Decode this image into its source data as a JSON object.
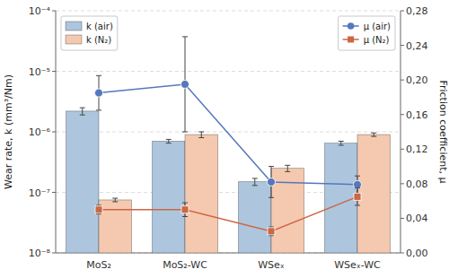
{
  "chart_data": {
    "type": "bar",
    "categories": [
      "MoS₂",
      "MoS₂-WC",
      "WSeₓ",
      "WSeₓ-WC"
    ],
    "ylabel": "Wear rate, k (mm³/Nm)",
    "y2label": "Friction coefficient, μ",
    "log": "y",
    "ylim": [
      1e-08,
      0.0001
    ],
    "yticks": [
      {
        "value": 1e-08,
        "label": "10⁻⁸"
      },
      {
        "value": 1e-07,
        "label": "10⁻⁷"
      },
      {
        "value": 1e-06,
        "label": "10⁻⁶"
      },
      {
        "value": 1e-05,
        "label": "10⁻⁵"
      },
      {
        "value": 0.0001,
        "label": "10⁻⁴"
      }
    ],
    "y2lim": [
      0.0,
      0.28
    ],
    "y2ticks": [
      {
        "value": 0.0,
        "label": "0,00"
      },
      {
        "value": 0.04,
        "label": "0,04"
      },
      {
        "value": 0.08,
        "label": "0,08"
      },
      {
        "value": 0.12,
        "label": "0,12"
      },
      {
        "value": 0.16,
        "label": "0,16"
      },
      {
        "value": 0.2,
        "label": "0,20"
      },
      {
        "value": 0.24,
        "label": "0,24"
      },
      {
        "value": 0.28,
        "label": "0,28"
      }
    ],
    "grid": true,
    "legend": "upper left",
    "series": [
      {
        "name": "k (air)",
        "type": "bar",
        "color": "#adc6de",
        "values": [
          2.2e-06,
          7e-07,
          1.5e-07,
          6.5e-07
        ],
        "errors": [
          3e-07,
          5e-08,
          2e-08,
          5e-08
        ]
      },
      {
        "name": "k (N₂)",
        "type": "bar",
        "color": "#f5c9af",
        "values": [
          7.5e-08,
          9e-07,
          2.5e-07,
          9e-07
        ],
        "errors": [
          5e-09,
          1e-07,
          3e-08,
          6e-08
        ]
      },
      {
        "name": "μ (air)",
        "type": "line",
        "axis": "y2",
        "color": "#5577bb",
        "marker": "circle",
        "values": [
          0.185,
          0.195,
          0.082,
          0.079
        ],
        "errors": [
          0.02,
          0.055,
          0.018,
          0.01
        ]
      },
      {
        "name": "μ (N₂)",
        "type": "line",
        "axis": "y2",
        "color": "#cc6644",
        "marker": "square",
        "values": [
          0.05,
          0.05,
          0.025,
          0.065
        ],
        "errors": [
          0.005,
          0.008,
          0.005,
          0.01
        ]
      }
    ]
  }
}
